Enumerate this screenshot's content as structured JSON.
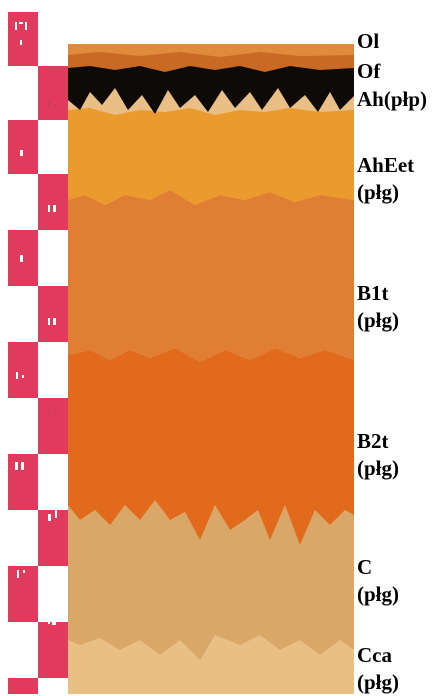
{
  "horizons": [
    {
      "id": "ol",
      "line1": "Ol",
      "line2": "",
      "color": "#e08a3c"
    },
    {
      "id": "of",
      "line1": "Of",
      "line2": "",
      "color": "#c96a24"
    },
    {
      "id": "ah",
      "line1": "Ah(płp)",
      "line2": "",
      "color": "#0e0a07"
    },
    {
      "id": "aheet",
      "line1": "AhEet",
      "line2": "(płg)",
      "color": "#eb9a2e"
    },
    {
      "id": "b1t",
      "line1": "B1t",
      "line2": "(płg)",
      "color": "#e07e34"
    },
    {
      "id": "b2t",
      "line1": "B2t",
      "line2": "(płg)",
      "color": "#e16a1c"
    },
    {
      "id": "c",
      "line1": "C",
      "line2": "(płg)",
      "color": "#d9a868"
    },
    {
      "id": "cca",
      "line1": "Cca",
      "line2": "(płg)",
      "color": "#e9bf86"
    }
  ],
  "scale": {
    "color_red": "#e03a5c",
    "color_white": "#ffffff"
  }
}
